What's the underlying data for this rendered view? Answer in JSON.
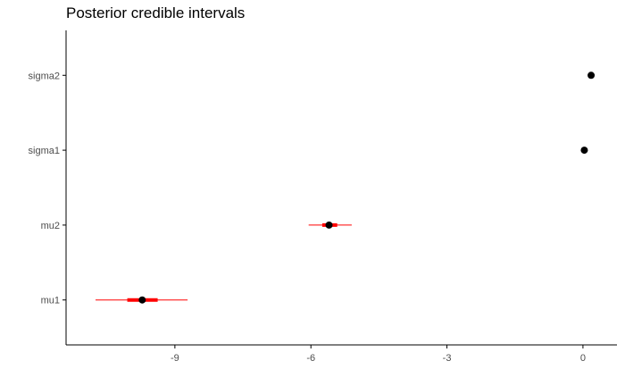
{
  "chart_data": {
    "type": "interval",
    "title": "Posterior credible intervals",
    "xlabel": "",
    "ylabel": "",
    "xlim": [
      -11.4,
      0.75
    ],
    "x_ticks": [
      -9,
      -6,
      -3,
      0
    ],
    "x_tick_labels": [
      "-9",
      "-6",
      "-3",
      "0"
    ],
    "categories": [
      "mu1",
      "mu2",
      "sigma1",
      "sigma2"
    ],
    "intervals": [
      {
        "param": "mu1",
        "median": -9.72,
        "inner": [
          -10.05,
          -9.38
        ],
        "outer": [
          -10.75,
          -8.72
        ]
      },
      {
        "param": "mu2",
        "median": -5.6,
        "inner": [
          -5.75,
          -5.42
        ],
        "outer": [
          -6.05,
          -5.1
        ]
      },
      {
        "param": "sigma1",
        "median": 0.03,
        "inner": [
          0.0,
          0.06
        ],
        "outer": [
          -0.03,
          0.09
        ]
      },
      {
        "param": "sigma2",
        "median": 0.18,
        "inner": [
          0.15,
          0.21
        ],
        "outer": [
          0.12,
          0.24
        ]
      }
    ],
    "grid": false,
    "colors": {
      "interval": "#ff0000",
      "point": "#000000",
      "axis": "#000000",
      "text": "#4d4d4d"
    }
  }
}
